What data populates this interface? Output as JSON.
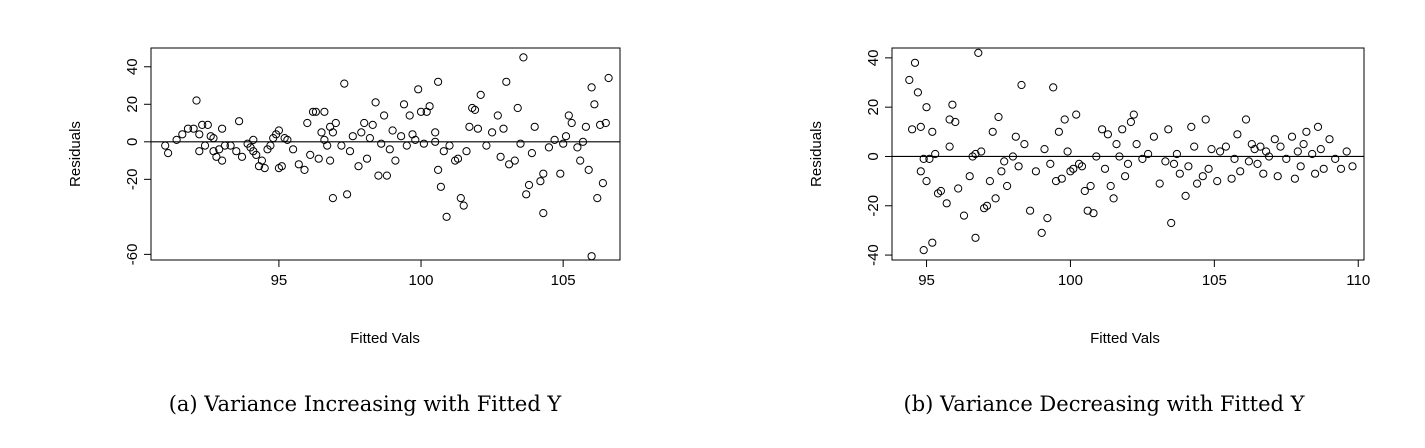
{
  "chart_data": [
    {
      "type": "scatter",
      "caption": "(a) Variance Increasing with Fitted Y",
      "xlabel": "Fitted Vals",
      "ylabel": "Residuals",
      "xlim": [
        90.5,
        107
      ],
      "ylim": [
        -63,
        50
      ],
      "xticks": [
        95,
        100,
        105
      ],
      "yticks": [
        -60,
        -20,
        0,
        20,
        40
      ],
      "reference_line_y": 0,
      "grid": false,
      "points": [
        [
          91.0,
          -2
        ],
        [
          91.1,
          -6
        ],
        [
          91.4,
          1
        ],
        [
          91.6,
          4
        ],
        [
          91.8,
          7
        ],
        [
          92.0,
          7
        ],
        [
          92.1,
          22
        ],
        [
          92.2,
          -5
        ],
        [
          92.2,
          4
        ],
        [
          92.3,
          9
        ],
        [
          92.4,
          -2
        ],
        [
          92.5,
          9
        ],
        [
          92.6,
          3
        ],
        [
          92.7,
          -5
        ],
        [
          92.7,
          2
        ],
        [
          92.8,
          -8
        ],
        [
          92.9,
          -4
        ],
        [
          93.0,
          7
        ],
        [
          93.0,
          -10
        ],
        [
          93.1,
          -2
        ],
        [
          93.3,
          -2
        ],
        [
          93.5,
          -5
        ],
        [
          93.6,
          11
        ],
        [
          93.7,
          -8
        ],
        [
          93.9,
          -1
        ],
        [
          94.0,
          -3
        ],
        [
          94.1,
          1
        ],
        [
          94.1,
          -5
        ],
        [
          94.2,
          -7
        ],
        [
          94.3,
          -13
        ],
        [
          94.4,
          -10
        ],
        [
          94.5,
          -14
        ],
        [
          94.6,
          -4
        ],
        [
          94.7,
          -2
        ],
        [
          94.8,
          2
        ],
        [
          94.9,
          4
        ],
        [
          95.0,
          -14
        ],
        [
          95.0,
          6
        ],
        [
          95.1,
          -13
        ],
        [
          95.2,
          2
        ],
        [
          95.3,
          1
        ],
        [
          95.5,
          -4
        ],
        [
          95.7,
          -12
        ],
        [
          95.9,
          -15
        ],
        [
          96.0,
          10
        ],
        [
          96.1,
          -7
        ],
        [
          96.2,
          16
        ],
        [
          96.3,
          16
        ],
        [
          96.4,
          -9
        ],
        [
          96.5,
          5
        ],
        [
          96.6,
          16
        ],
        [
          96.6,
          1
        ],
        [
          96.7,
          -2
        ],
        [
          96.8,
          -10
        ],
        [
          96.8,
          8
        ],
        [
          96.9,
          5
        ],
        [
          96.9,
          -30
        ],
        [
          97.0,
          10
        ],
        [
          97.2,
          -2
        ],
        [
          97.3,
          31
        ],
        [
          97.4,
          -28
        ],
        [
          97.5,
          -5
        ],
        [
          97.6,
          3
        ],
        [
          97.8,
          -13
        ],
        [
          97.9,
          5
        ],
        [
          98.0,
          10
        ],
        [
          98.1,
          -9
        ],
        [
          98.2,
          2
        ],
        [
          98.3,
          9
        ],
        [
          98.4,
          21
        ],
        [
          98.5,
          -18
        ],
        [
          98.6,
          -1
        ],
        [
          98.7,
          14
        ],
        [
          98.8,
          -18
        ],
        [
          98.9,
          -4
        ],
        [
          99.0,
          6
        ],
        [
          99.1,
          -10
        ],
        [
          99.3,
          3
        ],
        [
          99.4,
          20
        ],
        [
          99.5,
          -2
        ],
        [
          99.6,
          14
        ],
        [
          99.7,
          4
        ],
        [
          99.8,
          1
        ],
        [
          99.9,
          28
        ],
        [
          100.0,
          16
        ],
        [
          100.1,
          -1
        ],
        [
          100.2,
          16
        ],
        [
          100.3,
          19
        ],
        [
          100.5,
          5
        ],
        [
          100.5,
          0
        ],
        [
          100.6,
          -15
        ],
        [
          100.6,
          32
        ],
        [
          100.7,
          -24
        ],
        [
          100.8,
          -5
        ],
        [
          100.9,
          -40
        ],
        [
          101.0,
          -2
        ],
        [
          101.2,
          -10
        ],
        [
          101.3,
          -9
        ],
        [
          101.4,
          -30
        ],
        [
          101.5,
          -34
        ],
        [
          101.6,
          -5
        ],
        [
          101.7,
          8
        ],
        [
          101.8,
          18
        ],
        [
          101.9,
          17
        ],
        [
          102.0,
          7
        ],
        [
          102.1,
          25
        ],
        [
          102.3,
          -2
        ],
        [
          102.5,
          5
        ],
        [
          102.7,
          14
        ],
        [
          102.8,
          -8
        ],
        [
          102.9,
          7
        ],
        [
          103.0,
          32
        ],
        [
          103.1,
          -12
        ],
        [
          103.3,
          -10
        ],
        [
          103.4,
          18
        ],
        [
          103.5,
          -1
        ],
        [
          103.6,
          45
        ],
        [
          103.7,
          -28
        ],
        [
          103.8,
          -23
        ],
        [
          103.9,
          -6
        ],
        [
          104.0,
          8
        ],
        [
          104.2,
          -21
        ],
        [
          104.3,
          -17
        ],
        [
          104.3,
          -38
        ],
        [
          104.5,
          -3
        ],
        [
          104.7,
          1
        ],
        [
          104.9,
          -17
        ],
        [
          105.0,
          -1
        ],
        [
          105.1,
          3
        ],
        [
          105.2,
          14
        ],
        [
          105.3,
          10
        ],
        [
          105.5,
          -3
        ],
        [
          105.6,
          -10
        ],
        [
          105.7,
          0
        ],
        [
          105.8,
          8
        ],
        [
          105.9,
          -15
        ],
        [
          106.0,
          29
        ],
        [
          106.0,
          -61
        ],
        [
          106.1,
          20
        ],
        [
          106.2,
          -30
        ],
        [
          106.3,
          9
        ],
        [
          106.4,
          -22
        ],
        [
          106.5,
          10
        ],
        [
          106.6,
          34
        ]
      ]
    },
    {
      "type": "scatter",
      "caption": "(b) Variance Decreasing with Fitted Y",
      "xlabel": "Fitted Vals",
      "ylabel": "Residuals",
      "xlim": [
        93.8,
        110.2
      ],
      "ylim": [
        -42,
        44
      ],
      "xticks": [
        95,
        100,
        105,
        110
      ],
      "yticks": [
        -40,
        -20,
        0,
        20,
        40
      ],
      "reference_line_y": 0,
      "grid": false,
      "points": [
        [
          94.4,
          31
        ],
        [
          94.5,
          11
        ],
        [
          94.6,
          38
        ],
        [
          94.7,
          26
        ],
        [
          94.8,
          -6
        ],
        [
          94.8,
          12
        ],
        [
          94.9,
          -38
        ],
        [
          94.9,
          -1
        ],
        [
          95.0,
          20
        ],
        [
          95.0,
          -10
        ],
        [
          95.1,
          -1
        ],
        [
          95.2,
          10
        ],
        [
          95.2,
          -35
        ],
        [
          95.3,
          1
        ],
        [
          95.4,
          -15
        ],
        [
          95.5,
          -14
        ],
        [
          95.7,
          -19
        ],
        [
          95.8,
          15
        ],
        [
          95.8,
          4
        ],
        [
          95.9,
          21
        ],
        [
          96.0,
          14
        ],
        [
          96.1,
          -13
        ],
        [
          96.3,
          -24
        ],
        [
          96.5,
          -8
        ],
        [
          96.6,
          0
        ],
        [
          96.7,
          -33
        ],
        [
          96.7,
          1
        ],
        [
          96.8,
          42
        ],
        [
          96.9,
          2
        ],
        [
          97.0,
          -21
        ],
        [
          97.1,
          -20
        ],
        [
          97.2,
          -10
        ],
        [
          97.3,
          10
        ],
        [
          97.4,
          -17
        ],
        [
          97.5,
          16
        ],
        [
          97.6,
          -6
        ],
        [
          97.7,
          -2
        ],
        [
          97.8,
          -12
        ],
        [
          98.0,
          0
        ],
        [
          98.1,
          8
        ],
        [
          98.2,
          -4
        ],
        [
          98.3,
          29
        ],
        [
          98.4,
          5
        ],
        [
          98.6,
          -22
        ],
        [
          98.8,
          -6
        ],
        [
          99.0,
          -31
        ],
        [
          99.1,
          3
        ],
        [
          99.2,
          -25
        ],
        [
          99.3,
          -3
        ],
        [
          99.4,
          28
        ],
        [
          99.5,
          -10
        ],
        [
          99.6,
          10
        ],
        [
          99.7,
          -9
        ],
        [
          99.8,
          15
        ],
        [
          99.9,
          2
        ],
        [
          100.0,
          -6
        ],
        [
          100.1,
          -5
        ],
        [
          100.2,
          17
        ],
        [
          100.3,
          -3
        ],
        [
          100.4,
          -4
        ],
        [
          100.5,
          -14
        ],
        [
          100.6,
          -22
        ],
        [
          100.7,
          -12
        ],
        [
          100.8,
          -23
        ],
        [
          100.9,
          0
        ],
        [
          101.1,
          11
        ],
        [
          101.2,
          -5
        ],
        [
          101.3,
          9
        ],
        [
          101.4,
          -12
        ],
        [
          101.5,
          -17
        ],
        [
          101.6,
          5
        ],
        [
          101.7,
          0
        ],
        [
          101.8,
          11
        ],
        [
          101.9,
          -8
        ],
        [
          102.0,
          -3
        ],
        [
          102.1,
          14
        ],
        [
          102.2,
          17
        ],
        [
          102.3,
          5
        ],
        [
          102.5,
          -1
        ],
        [
          102.7,
          1
        ],
        [
          102.9,
          8
        ],
        [
          103.1,
          -11
        ],
        [
          103.3,
          -2
        ],
        [
          103.4,
          11
        ],
        [
          103.5,
          -27
        ],
        [
          103.6,
          -3
        ],
        [
          103.7,
          1
        ],
        [
          103.8,
          -7
        ],
        [
          104.0,
          -16
        ],
        [
          104.1,
          -4
        ],
        [
          104.2,
          12
        ],
        [
          104.3,
          4
        ],
        [
          104.4,
          -11
        ],
        [
          104.6,
          -8
        ],
        [
          104.7,
          15
        ],
        [
          104.8,
          -5
        ],
        [
          104.9,
          3
        ],
        [
          105.1,
          -10
        ],
        [
          105.2,
          2
        ],
        [
          105.4,
          4
        ],
        [
          105.6,
          -9
        ],
        [
          105.7,
          -1
        ],
        [
          105.8,
          9
        ],
        [
          105.9,
          -6
        ],
        [
          106.1,
          15
        ],
        [
          106.2,
          -2
        ],
        [
          106.3,
          5
        ],
        [
          106.4,
          3
        ],
        [
          106.5,
          -3
        ],
        [
          106.6,
          4
        ],
        [
          106.7,
          -7
        ],
        [
          106.8,
          2
        ],
        [
          106.9,
          0
        ],
        [
          107.1,
          7
        ],
        [
          107.2,
          -8
        ],
        [
          107.3,
          4
        ],
        [
          107.5,
          -1
        ],
        [
          107.7,
          8
        ],
        [
          107.8,
          -9
        ],
        [
          107.9,
          2
        ],
        [
          108.0,
          -4
        ],
        [
          108.1,
          5
        ],
        [
          108.2,
          10
        ],
        [
          108.4,
          1
        ],
        [
          108.5,
          -7
        ],
        [
          108.6,
          12
        ],
        [
          108.7,
          3
        ],
        [
          108.8,
          -5
        ],
        [
          109.0,
          7
        ],
        [
          109.2,
          -1
        ],
        [
          109.4,
          -5
        ],
        [
          109.6,
          2
        ],
        [
          109.8,
          -4
        ]
      ]
    }
  ]
}
